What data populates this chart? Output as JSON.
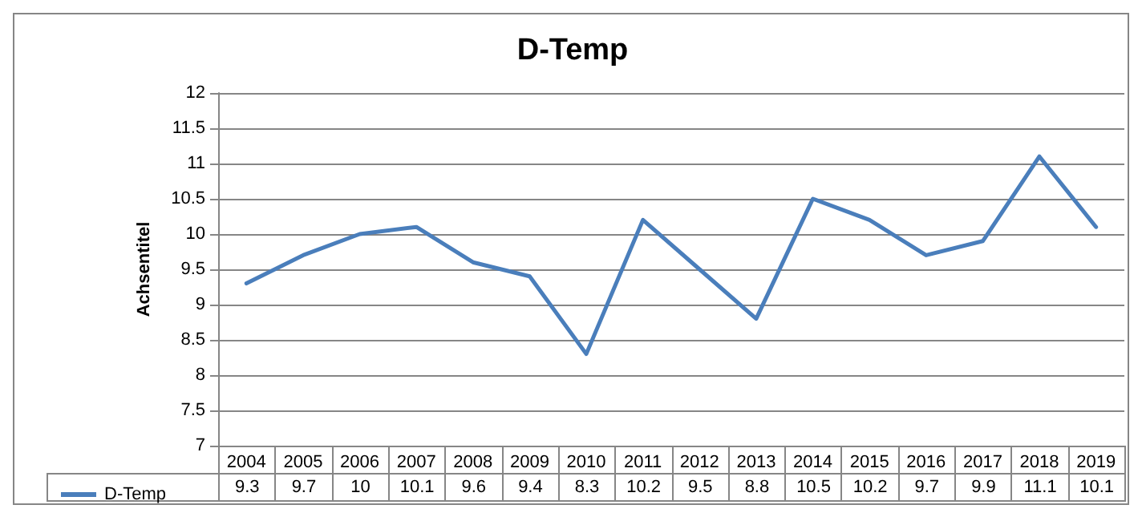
{
  "chart_data": {
    "type": "line",
    "title": "D-Temp",
    "ylabel": "Achsentitel",
    "categories": [
      "2004",
      "2005",
      "2006",
      "2007",
      "2008",
      "2009",
      "2010",
      "2011",
      "2012",
      "2013",
      "2014",
      "2015",
      "2016",
      "2017",
      "2018",
      "2019"
    ],
    "series": [
      {
        "name": "D-Temp",
        "color": "#4a7ebb",
        "values": [
          9.3,
          9.7,
          10,
          10.1,
          9.6,
          9.4,
          8.3,
          10.2,
          9.5,
          8.8,
          10.5,
          10.2,
          9.7,
          9.9,
          11.1,
          10.1
        ]
      }
    ],
    "ylim": [
      7,
      12
    ],
    "yticks": [
      7,
      7.5,
      8,
      8.5,
      9,
      9.5,
      10,
      10.5,
      11,
      11.5,
      12
    ],
    "grid": "y",
    "legend": "bottom left",
    "marker": "none",
    "line_style": "solid",
    "data_labels": true
  }
}
